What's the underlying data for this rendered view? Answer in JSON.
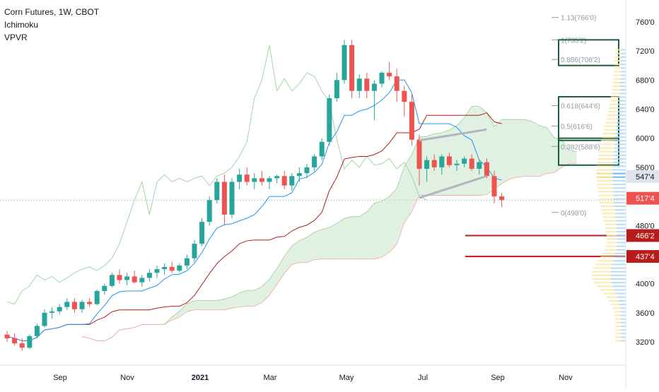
{
  "header": {
    "title": "Corn Futures, 1W, CBOT",
    "indicators": [
      "Ichimoku",
      "VPVR"
    ]
  },
  "chart_data": {
    "type": "candlestick",
    "x_axis_labels": [
      "Sep",
      "Nov",
      "2021",
      "Mar",
      "May",
      "Jul",
      "Sep",
      "Nov"
    ],
    "y_axis_labels": [
      "760'0",
      "720'0",
      "680'0",
      "640'0",
      "600'0",
      "560'0",
      "480'0",
      "400'0",
      "360'0",
      "320'0"
    ],
    "ylim": [
      290,
      790
    ],
    "price_tags": [
      {
        "label": "547'4",
        "value": 547.5,
        "color": "#e0e3eb",
        "text_color": "#131722"
      },
      {
        "label": "517'4",
        "value": 517.5,
        "color": "#ef5350",
        "text_color": "#ffffff"
      },
      {
        "label": "466'2",
        "value": 466.25,
        "color": "#b71c1c",
        "text_color": "#ffffff"
      },
      {
        "label": "437'4",
        "value": 437.5,
        "color": "#b71c1c",
        "text_color": "#ffffff"
      }
    ],
    "fib_levels": [
      {
        "label": "1.13(766'0)",
        "value": 766
      },
      {
        "label": "1(735'2)",
        "value": 735.25
      },
      {
        "label": "0.886(708'2)",
        "value": 708.25
      },
      {
        "label": "0.618(644'6)",
        "value": 644.75
      },
      {
        "label": "0.5(616'6)",
        "value": 616.75
      },
      {
        "label": "0.382(588'6)",
        "value": 588.75
      },
      {
        "label": "0(498'0)",
        "value": 498
      }
    ],
    "fib_boxes": [
      [
        735.25,
        700
      ],
      [
        657,
        597
      ],
      [
        600,
        563
      ]
    ],
    "horizontal_lines": [
      466.25,
      437.5
    ],
    "candles": [
      [
        330,
        335,
        320,
        325
      ],
      [
        325,
        332,
        315,
        318
      ],
      [
        318,
        325,
        308,
        312
      ],
      [
        312,
        330,
        310,
        328
      ],
      [
        328,
        345,
        325,
        342
      ],
      [
        342,
        365,
        340,
        360
      ],
      [
        360,
        368,
        352,
        362
      ],
      [
        362,
        372,
        358,
        368
      ],
      [
        368,
        380,
        364,
        375
      ],
      [
        375,
        380,
        360,
        365
      ],
      [
        365,
        378,
        360,
        375
      ],
      [
        375,
        380,
        368,
        372
      ],
      [
        372,
        392,
        370,
        390
      ],
      [
        390,
        400,
        385,
        397
      ],
      [
        397,
        415,
        395,
        412
      ],
      [
        412,
        420,
        400,
        405
      ],
      [
        405,
        415,
        398,
        410
      ],
      [
        410,
        418,
        400,
        402
      ],
      [
        402,
        412,
        396,
        408
      ],
      [
        408,
        420,
        403,
        415
      ],
      [
        415,
        425,
        408,
        420
      ],
      [
        420,
        428,
        412,
        423
      ],
      [
        423,
        430,
        415,
        418
      ],
      [
        418,
        428,
        415,
        425
      ],
      [
        425,
        440,
        420,
        435
      ],
      [
        435,
        460,
        430,
        455
      ],
      [
        455,
        490,
        452,
        485
      ],
      [
        485,
        520,
        480,
        515
      ],
      [
        515,
        545,
        510,
        540
      ],
      [
        540,
        550,
        480,
        495
      ],
      [
        495,
        545,
        490,
        540
      ],
      [
        540,
        558,
        530,
        550
      ],
      [
        550,
        560,
        535,
        540
      ],
      [
        540,
        552,
        530,
        545
      ],
      [
        545,
        555,
        535,
        540
      ],
      [
        540,
        548,
        530,
        545
      ],
      [
        545,
        550,
        538,
        548
      ],
      [
        548,
        555,
        530,
        535
      ],
      [
        535,
        552,
        528,
        548
      ],
      [
        548,
        560,
        540,
        552
      ],
      [
        552,
        565,
        545,
        560
      ],
      [
        560,
        578,
        555,
        575
      ],
      [
        575,
        600,
        570,
        595
      ],
      [
        595,
        660,
        590,
        655
      ],
      [
        655,
        690,
        650,
        680
      ],
      [
        680,
        735,
        675,
        728
      ],
      [
        728,
        735,
        655,
        665
      ],
      [
        665,
        688,
        655,
        682
      ],
      [
        682,
        690,
        655,
        665
      ],
      [
        665,
        680,
        625,
        675
      ],
      [
        675,
        692,
        670,
        690
      ],
      [
        690,
        705,
        680,
        685
      ],
      [
        685,
        695,
        650,
        665
      ],
      [
        665,
        672,
        630,
        650
      ],
      [
        650,
        660,
        590,
        598
      ],
      [
        598,
        605,
        535,
        558
      ],
      [
        558,
        575,
        540,
        570
      ],
      [
        570,
        578,
        555,
        560
      ],
      [
        560,
        578,
        550,
        575
      ],
      [
        575,
        580,
        560,
        563
      ],
      [
        563,
        570,
        555,
        565
      ],
      [
        565,
        575,
        560,
        572
      ],
      [
        572,
        578,
        555,
        558
      ],
      [
        558,
        570,
        550,
        567
      ],
      [
        567,
        572,
        545,
        548
      ],
      [
        548,
        555,
        510,
        520
      ],
      [
        520,
        525,
        505,
        515
      ]
    ],
    "colors": {
      "up": "#26a69a",
      "down": "#ef5350",
      "conversion": "#2196f3",
      "base": "#b71c1c",
      "lagging": "#a5d6a7",
      "cloud_bull": "#c8e6c9",
      "cloud_bear": "#ffcdd2",
      "vp_up": "#b3d9f5",
      "vp_down": "#fbe9a8",
      "vp_poc_up": "#64b5f6",
      "vp_poc_down": "#f5d77a",
      "trend": "#b2b5be",
      "fib_box": "#1b5e3b",
      "axis_text": "#131722"
    }
  }
}
